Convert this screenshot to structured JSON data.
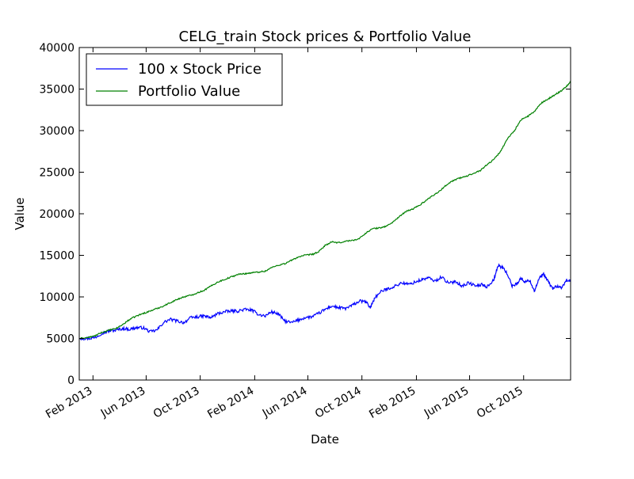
{
  "chart_data": {
    "type": "line",
    "title": "CELG_train Stock prices & Portfolio Value",
    "xlabel": "Date",
    "ylabel": "Value",
    "x_range": [
      "2013-01-01",
      "2016-01-15"
    ],
    "ylim": [
      0,
      40000
    ],
    "y_ticks": [
      0,
      5000,
      10000,
      15000,
      20000,
      25000,
      30000,
      35000,
      40000
    ],
    "x_ticks": [
      {
        "date": "2013-02-01",
        "label": "Feb 2013"
      },
      {
        "date": "2013-06-01",
        "label": "Jun 2013"
      },
      {
        "date": "2013-10-01",
        "label": "Oct 2013"
      },
      {
        "date": "2014-02-01",
        "label": "Feb 2014"
      },
      {
        "date": "2014-06-01",
        "label": "Jun 2014"
      },
      {
        "date": "2014-10-01",
        "label": "Oct 2014"
      },
      {
        "date": "2015-02-01",
        "label": "Feb 2015"
      },
      {
        "date": "2015-06-01",
        "label": "Jun 2015"
      },
      {
        "date": "2015-10-01",
        "label": "Oct 2015"
      }
    ],
    "grid": false,
    "legend_position": "top-left",
    "series": [
      {
        "name": "100 x Stock Price",
        "color": "#0000ff",
        "points": [
          [
            "2013-01-02",
            5000
          ],
          [
            "2013-01-20",
            5000
          ],
          [
            "2013-02-05",
            5100
          ],
          [
            "2013-02-20",
            5600
          ],
          [
            "2013-03-10",
            5900
          ],
          [
            "2013-03-25",
            6000
          ],
          [
            "2013-04-10",
            6200
          ],
          [
            "2013-04-25",
            6100
          ],
          [
            "2013-05-10",
            6300
          ],
          [
            "2013-05-25",
            6300
          ],
          [
            "2013-06-10",
            5800
          ],
          [
            "2013-06-25",
            6000
          ],
          [
            "2013-07-10",
            6900
          ],
          [
            "2013-07-25",
            7300
          ],
          [
            "2013-08-10",
            7100
          ],
          [
            "2013-08-25",
            6900
          ],
          [
            "2013-09-10",
            7500
          ],
          [
            "2013-09-25",
            7600
          ],
          [
            "2013-10-10",
            7700
          ],
          [
            "2013-10-25",
            7500
          ],
          [
            "2013-11-10",
            8000
          ],
          [
            "2013-11-25",
            8200
          ],
          [
            "2013-12-10",
            8300
          ],
          [
            "2013-12-25",
            8300
          ],
          [
            "2014-01-10",
            8500
          ],
          [
            "2014-01-25",
            8400
          ],
          [
            "2014-02-10",
            7900
          ],
          [
            "2014-02-25",
            7700
          ],
          [
            "2014-03-10",
            8200
          ],
          [
            "2014-03-25",
            8000
          ],
          [
            "2014-04-10",
            7100
          ],
          [
            "2014-04-25",
            6900
          ],
          [
            "2014-05-10",
            7200
          ],
          [
            "2014-05-25",
            7500
          ],
          [
            "2014-06-10",
            7600
          ],
          [
            "2014-06-25",
            8000
          ],
          [
            "2014-07-10",
            8500
          ],
          [
            "2014-07-25",
            8900
          ],
          [
            "2014-08-10",
            8700
          ],
          [
            "2014-08-25",
            8600
          ],
          [
            "2014-09-10",
            9000
          ],
          [
            "2014-09-25",
            9500
          ],
          [
            "2014-10-10",
            9400
          ],
          [
            "2014-10-20",
            8700
          ],
          [
            "2014-10-30",
            9900
          ],
          [
            "2014-11-15",
            10700
          ],
          [
            "2014-11-30",
            11000
          ],
          [
            "2014-12-15",
            11300
          ],
          [
            "2014-12-30",
            11700
          ],
          [
            "2015-01-15",
            11500
          ],
          [
            "2015-01-30",
            11800
          ],
          [
            "2015-02-15",
            12100
          ],
          [
            "2015-02-28",
            12300
          ],
          [
            "2015-03-15",
            11900
          ],
          [
            "2015-03-30",
            12400
          ],
          [
            "2015-04-15",
            11600
          ],
          [
            "2015-04-30",
            11900
          ],
          [
            "2015-05-15",
            11300
          ],
          [
            "2015-05-30",
            11700
          ],
          [
            "2015-06-15",
            11300
          ],
          [
            "2015-06-30",
            11500
          ],
          [
            "2015-07-10",
            11200
          ],
          [
            "2015-07-25",
            12000
          ],
          [
            "2015-08-05",
            13800
          ],
          [
            "2015-08-15",
            13500
          ],
          [
            "2015-08-25",
            12800
          ],
          [
            "2015-09-05",
            11300
          ],
          [
            "2015-09-15",
            11600
          ],
          [
            "2015-09-25",
            12200
          ],
          [
            "2015-10-05",
            11800
          ],
          [
            "2015-10-15",
            12000
          ],
          [
            "2015-10-25",
            10700
          ],
          [
            "2015-11-05",
            12200
          ],
          [
            "2015-11-15",
            12700
          ],
          [
            "2015-11-25",
            11900
          ],
          [
            "2015-12-05",
            11000
          ],
          [
            "2015-12-15",
            11300
          ],
          [
            "2015-12-25",
            11000
          ],
          [
            "2016-01-05",
            12000
          ],
          [
            "2016-01-15",
            11900
          ]
        ]
      },
      {
        "name": "Portfolio Value",
        "color": "#008000",
        "points": [
          [
            "2013-01-02",
            5000
          ],
          [
            "2013-01-20",
            5100
          ],
          [
            "2013-02-05",
            5300
          ],
          [
            "2013-02-20",
            5700
          ],
          [
            "2013-03-10",
            6000
          ],
          [
            "2013-03-25",
            6200
          ],
          [
            "2013-04-10",
            6700
          ],
          [
            "2013-04-25",
            7300
          ],
          [
            "2013-05-10",
            7700
          ],
          [
            "2013-05-25",
            8000
          ],
          [
            "2013-06-10",
            8300
          ],
          [
            "2013-06-25",
            8600
          ],
          [
            "2013-07-10",
            8900
          ],
          [
            "2013-07-25",
            9300
          ],
          [
            "2013-08-10",
            9700
          ],
          [
            "2013-08-25",
            10000
          ],
          [
            "2013-09-10",
            10200
          ],
          [
            "2013-09-25",
            10500
          ],
          [
            "2013-10-10",
            10800
          ],
          [
            "2013-10-25",
            11300
          ],
          [
            "2013-11-10",
            11800
          ],
          [
            "2013-11-25",
            12100
          ],
          [
            "2013-12-10",
            12400
          ],
          [
            "2013-12-25",
            12700
          ],
          [
            "2014-01-10",
            12800
          ],
          [
            "2014-01-25",
            12900
          ],
          [
            "2014-02-10",
            13000
          ],
          [
            "2014-02-25",
            13100
          ],
          [
            "2014-03-10",
            13500
          ],
          [
            "2014-03-25",
            13800
          ],
          [
            "2014-04-10",
            14000
          ],
          [
            "2014-04-25",
            14400
          ],
          [
            "2014-05-10",
            14800
          ],
          [
            "2014-05-25",
            15000
          ],
          [
            "2014-06-10",
            15100
          ],
          [
            "2014-06-25",
            15400
          ],
          [
            "2014-07-10",
            16200
          ],
          [
            "2014-07-25",
            16600
          ],
          [
            "2014-08-10",
            16500
          ],
          [
            "2014-08-25",
            16700
          ],
          [
            "2014-09-10",
            16800
          ],
          [
            "2014-09-25",
            17000
          ],
          [
            "2014-10-10",
            17700
          ],
          [
            "2014-10-25",
            18200
          ],
          [
            "2014-11-10",
            18300
          ],
          [
            "2014-11-25",
            18500
          ],
          [
            "2014-12-10",
            19000
          ],
          [
            "2014-12-25",
            19700
          ],
          [
            "2015-01-10",
            20300
          ],
          [
            "2015-01-25",
            20600
          ],
          [
            "2015-02-10",
            21100
          ],
          [
            "2015-02-25",
            21700
          ],
          [
            "2015-03-10",
            22200
          ],
          [
            "2015-03-25",
            22700
          ],
          [
            "2015-04-10",
            23500
          ],
          [
            "2015-04-25",
            24000
          ],
          [
            "2015-05-10",
            24300
          ],
          [
            "2015-05-25",
            24500
          ],
          [
            "2015-06-10",
            24900
          ],
          [
            "2015-06-25",
            25200
          ],
          [
            "2015-07-10",
            25900
          ],
          [
            "2015-07-25",
            26500
          ],
          [
            "2015-08-10",
            27500
          ],
          [
            "2015-08-25",
            29000
          ],
          [
            "2015-09-10",
            30000
          ],
          [
            "2015-09-25",
            31300
          ],
          [
            "2015-10-10",
            31700
          ],
          [
            "2015-10-25",
            32300
          ],
          [
            "2015-11-10",
            33300
          ],
          [
            "2015-11-25",
            33800
          ],
          [
            "2015-12-10",
            34300
          ],
          [
            "2015-12-25",
            34800
          ],
          [
            "2016-01-05",
            35300
          ],
          [
            "2016-01-15",
            35900
          ]
        ]
      }
    ]
  }
}
